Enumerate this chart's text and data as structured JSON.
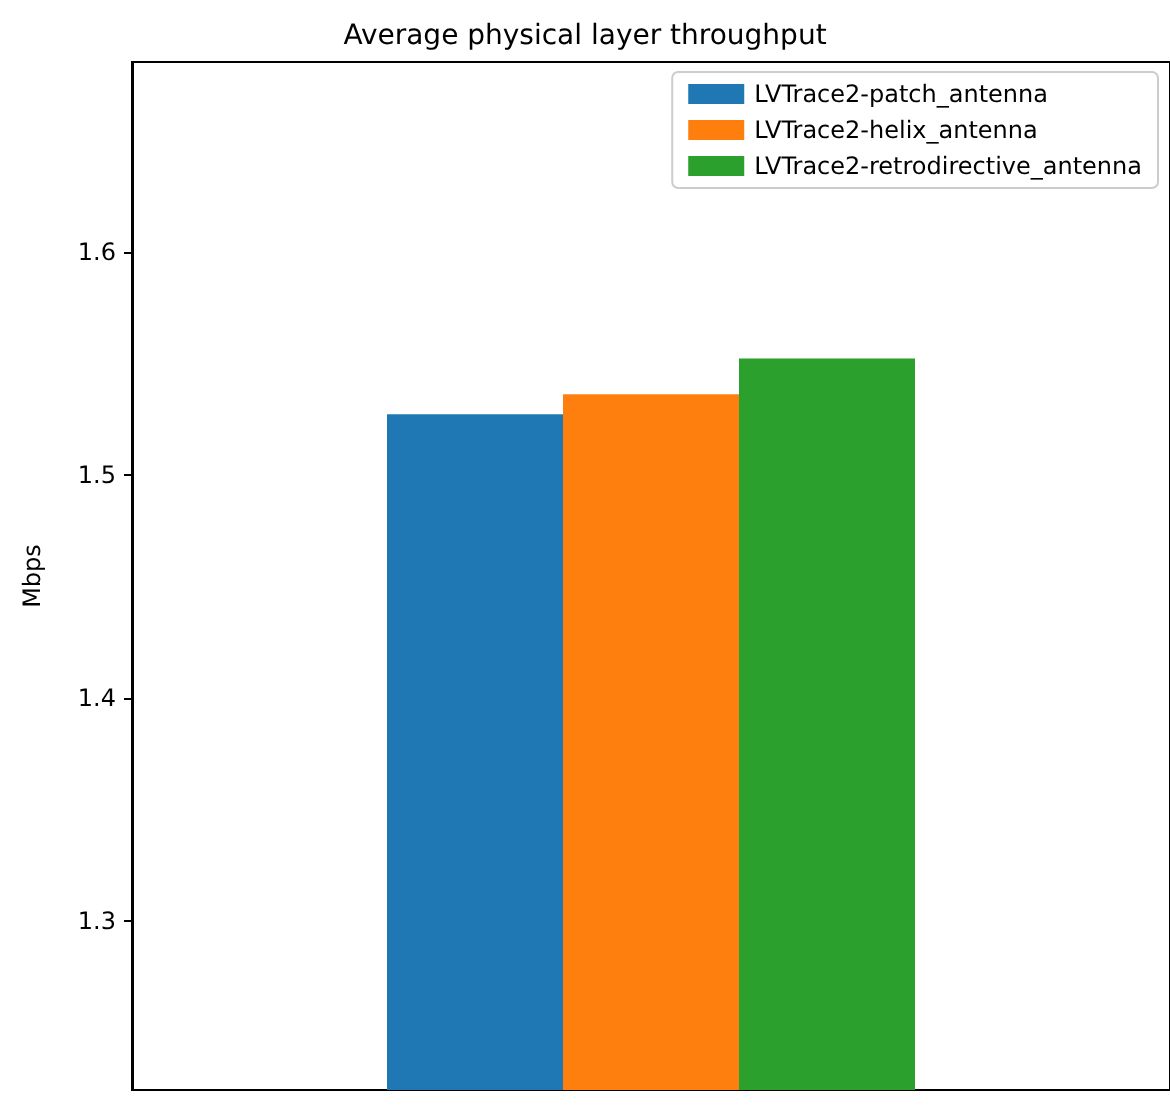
{
  "chart_data": {
    "type": "bar",
    "title": "Average physical layer throughput",
    "ylabel": "Mbps",
    "categories": [
      null
    ],
    "series": [
      {
        "name": "LVTrace2-patch_antenna",
        "color": "#1f77b4",
        "values": [
          1.527
        ]
      },
      {
        "name": "LVTrace2-helix_antenna",
        "color": "#ff7f0e",
        "values": [
          1.536
        ]
      },
      {
        "name": "LVTrace2-retrodirective_antenna",
        "color": "#2ca02c",
        "values": [
          1.552
        ]
      }
    ],
    "ylim": [
      1.224,
      1.685
    ],
    "yticks": [
      1.3,
      1.4,
      1.5,
      1.6
    ],
    "grid": false,
    "legend": "top right"
  }
}
